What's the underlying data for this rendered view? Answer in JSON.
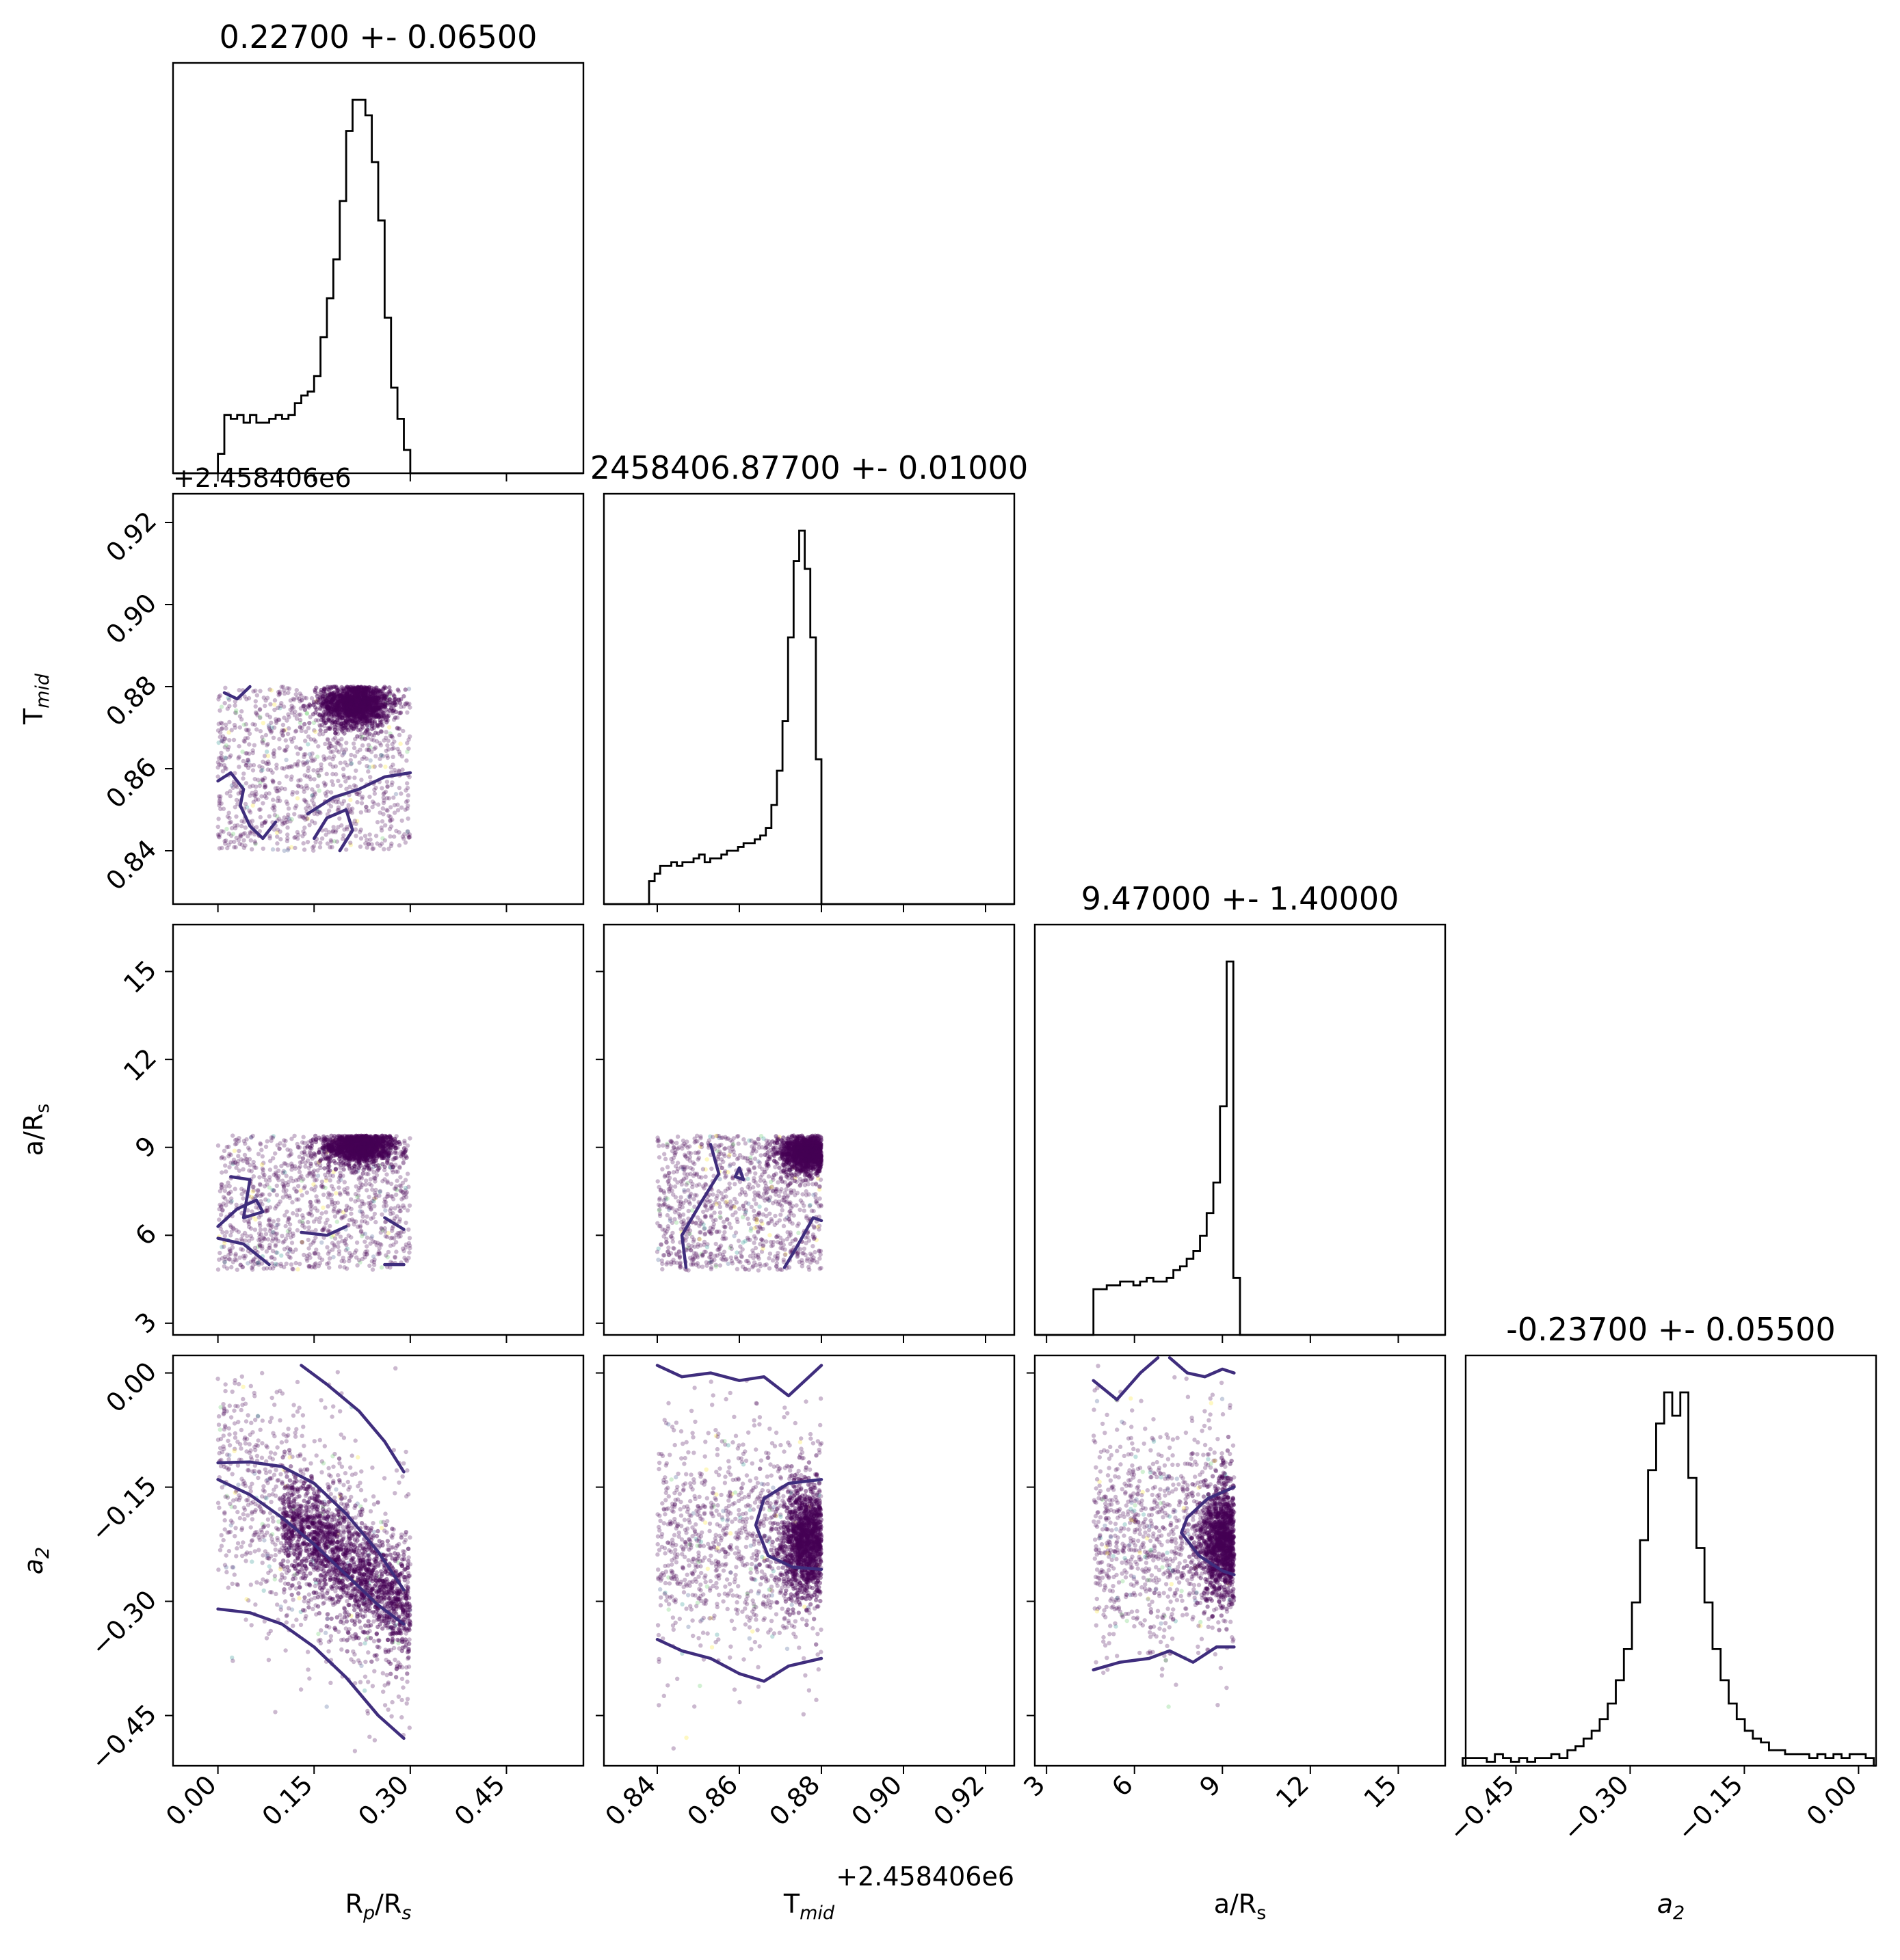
{
  "figure": {
    "type": "corner-plot",
    "parameters": [
      "R_p/R_s",
      "T_mid",
      "a/R_s",
      "a_2"
    ],
    "axis_labels": [
      "R_p/R_s",
      "T_mid",
      "a/R_s",
      "a_2"
    ],
    "offset_text": "+2.458406e6",
    "colors": {
      "contour": "#3f2d7d",
      "scatter_main": "#440154",
      "scatter_alt": [
        "#3b528b",
        "#21918c",
        "#5ec962",
        "#fde725"
      ],
      "hist": "#000000"
    }
  },
  "chart_data": {
    "type": "corner",
    "grid": false,
    "titles": [
      "0.22700 +- 0.06500",
      "2458406.87700 +- 0.01000",
      "9.47000 +- 1.40000",
      "-0.23700 +- 0.05500"
    ],
    "axes": [
      {
        "name": "R_p/R_s",
        "range": [
          -0.07,
          0.57
        ],
        "ticks": [
          0.0,
          0.15,
          0.3,
          0.45
        ],
        "tick_labels": [
          "0.00",
          "0.15",
          "0.30",
          "0.45"
        ]
      },
      {
        "name": "T_mid",
        "offset": "+2.458406e6",
        "range": [
          0.827,
          0.927
        ],
        "ticks": [
          0.84,
          0.86,
          0.88,
          0.9,
          0.92
        ],
        "tick_labels": [
          "0.84",
          "0.86",
          "0.88",
          "0.90",
          "0.92"
        ]
      },
      {
        "name": "a/R_s",
        "range": [
          2.6,
          16.6
        ],
        "ticks": [
          3,
          6,
          9,
          12,
          15
        ],
        "tick_labels": [
          "3",
          "6",
          "9",
          "12",
          "15"
        ]
      },
      {
        "name": "a_2",
        "range": [
          -0.516,
          0.023
        ],
        "ticks": [
          -0.45,
          -0.3,
          -0.15,
          0.0
        ],
        "tick_labels": [
          "−0.45",
          "−0.30",
          "−0.15",
          "0.00"
        ]
      }
    ],
    "histograms": [
      {
        "edges_range": [
          0.0,
          0.3
        ],
        "counts": [
          5,
          15,
          14,
          15,
          13,
          15,
          13,
          13,
          14,
          15,
          14,
          15,
          18,
          20,
          21,
          25,
          35,
          45,
          55,
          70,
          88,
          96,
          96,
          92,
          80,
          65,
          40,
          22,
          14,
          6
        ]
      },
      {
        "edges_range": [
          0.838,
          0.88
        ],
        "counts": [
          6,
          8,
          10,
          10,
          11,
          10,
          11,
          11,
          12,
          13,
          11,
          12,
          12,
          13,
          14,
          14,
          15,
          16,
          16,
          17,
          18,
          20,
          26,
          35,
          48,
          70,
          90,
          98,
          88,
          70,
          38
        ]
      },
      {
        "edges_range": [
          4.6,
          9.6
        ],
        "counts": [
          12,
          12,
          13,
          13,
          14,
          14,
          13,
          14,
          15,
          14,
          14,
          15,
          17,
          18,
          20,
          22,
          26,
          32,
          40,
          60,
          98,
          15
        ]
      },
      {
        "edges_range": [
          -0.52,
          0.02
        ],
        "counts": [
          2,
          2,
          2,
          1,
          3,
          2,
          1,
          2,
          1,
          2,
          2,
          3,
          2,
          4,
          5,
          7,
          9,
          12,
          16,
          22,
          30,
          42,
          58,
          76,
          88,
          96,
          90,
          96,
          74,
          56,
          42,
          30,
          22,
          16,
          12,
          9,
          7,
          6,
          4,
          4,
          3,
          3,
          3,
          2,
          3,
          2,
          3,
          2,
          3,
          3,
          2
        ]
      }
    ],
    "pairs": [
      {
        "x": 0,
        "y": 1,
        "x_range": [
          0.0,
          0.3
        ],
        "y_range": [
          0.84,
          0.88
        ],
        "core": [
          0.215,
          0.876
        ]
      },
      {
        "x": 0,
        "y": 2,
        "x_range": [
          0.0,
          0.3
        ],
        "y_range": [
          4.8,
          9.4
        ],
        "core": [
          0.22,
          9.1
        ]
      },
      {
        "x": 0,
        "y": 3,
        "x_range": [
          0.0,
          0.3
        ],
        "y_range": [
          -0.5,
          0.01
        ],
        "core": [
          0.22,
          -0.23
        ]
      },
      {
        "x": 1,
        "y": 2,
        "x_range": [
          0.84,
          0.88
        ],
        "y_range": [
          4.8,
          9.4
        ],
        "core": [
          0.877,
          8.8
        ]
      },
      {
        "x": 1,
        "y": 3,
        "x_range": [
          0.84,
          0.88
        ],
        "y_range": [
          -0.5,
          0.01
        ],
        "core": [
          0.877,
          -0.22
        ]
      },
      {
        "x": 2,
        "y": 3,
        "x_range": [
          4.6,
          9.4
        ],
        "y_range": [
          -0.5,
          0.01
        ],
        "core": [
          9.1,
          -0.22
        ]
      }
    ]
  }
}
